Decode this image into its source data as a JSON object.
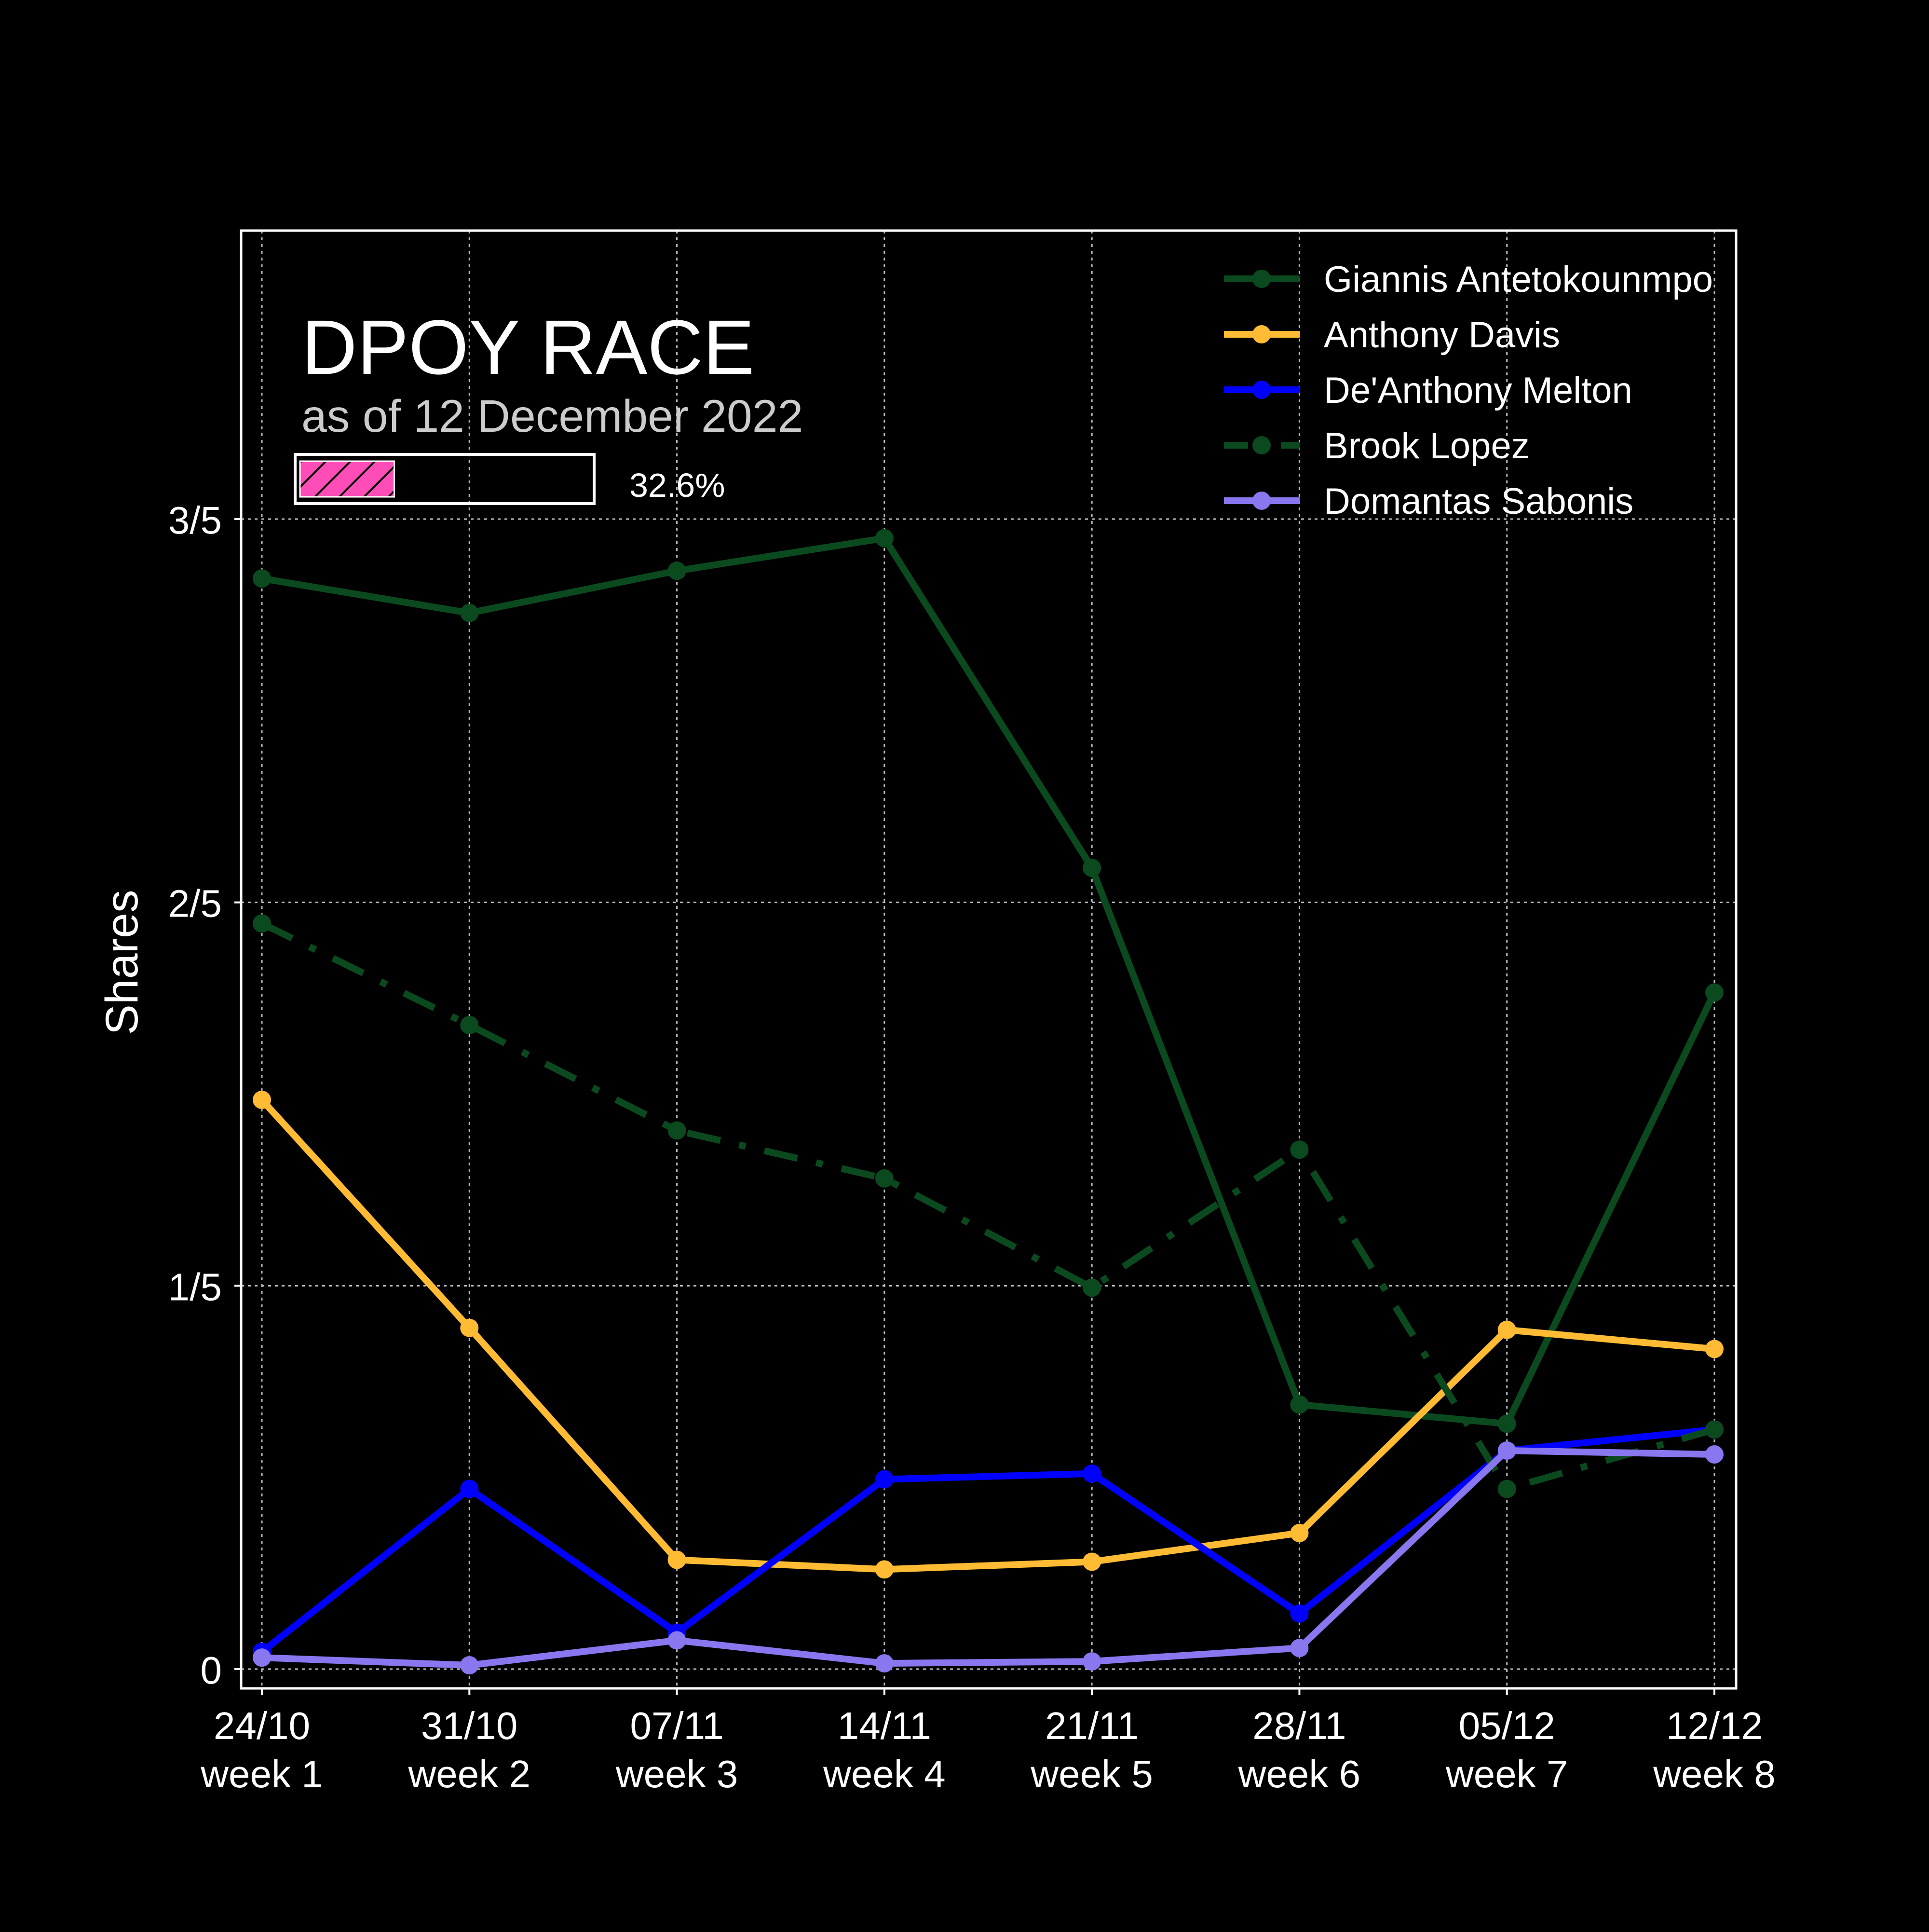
{
  "chart_data": {
    "type": "line",
    "title": "DPOY RACE",
    "subtitle": "as of 12 December 2022",
    "progress": {
      "value": 0.326,
      "label": "32.6%",
      "fill_color": "#ff4db8"
    },
    "ylabel": "Shares",
    "xlabel": "",
    "categories": [
      "24/10\nweek 1",
      "31/10\nweek 2",
      "07/11\nweek 3",
      "14/11\nweek 4",
      "21/11\nweek 5",
      "28/11\nweek 6",
      "05/12\nweek 7",
      "12/12\nweek 8"
    ],
    "x_tick_labels": [
      [
        "24/10",
        "week 1"
      ],
      [
        "31/10",
        "week 2"
      ],
      [
        "07/11",
        "week 3"
      ],
      [
        "14/11",
        "week 4"
      ],
      [
        "21/11",
        "week 5"
      ],
      [
        "28/11",
        "week 6"
      ],
      [
        "05/12",
        "week 7"
      ],
      [
        "12/12",
        "week 8"
      ]
    ],
    "y_ticks": [
      0,
      0.2,
      0.4,
      0.6
    ],
    "y_tick_labels": [
      "0",
      "1/5",
      "2/5",
      "3/5"
    ],
    "ylim": [
      -0.01,
      0.75
    ],
    "grid": true,
    "legend_position": "top-right",
    "series": [
      {
        "name": "Giannis Antetokounmpo",
        "color": "#0b4a1f",
        "style": "solid",
        "values": [
          0.569,
          0.551,
          0.573,
          0.59,
          0.418,
          0.138,
          0.128,
          0.353
        ]
      },
      {
        "name": "Anthony Davis",
        "color": "#ffbb33",
        "style": "solid",
        "values": [
          0.297,
          0.178,
          0.057,
          0.052,
          0.056,
          0.071,
          0.177,
          0.167
        ]
      },
      {
        "name": "De'Anthony Melton",
        "color": "#0000ff",
        "style": "solid",
        "values": [
          0.009,
          0.094,
          0.019,
          0.099,
          0.102,
          0.029,
          0.114,
          0.125
        ]
      },
      {
        "name": "Brook Lopez",
        "color": "#0b4a1f",
        "style": "dashdot",
        "values": [
          0.389,
          0.336,
          0.281,
          0.256,
          0.199,
          0.271,
          0.094,
          0.125
        ]
      },
      {
        "name": "Domantas Sabonis",
        "color": "#8877ee",
        "style": "solid",
        "values": [
          0.006,
          0.002,
          0.015,
          0.003,
          0.004,
          0.011,
          0.114,
          0.112
        ]
      }
    ]
  }
}
